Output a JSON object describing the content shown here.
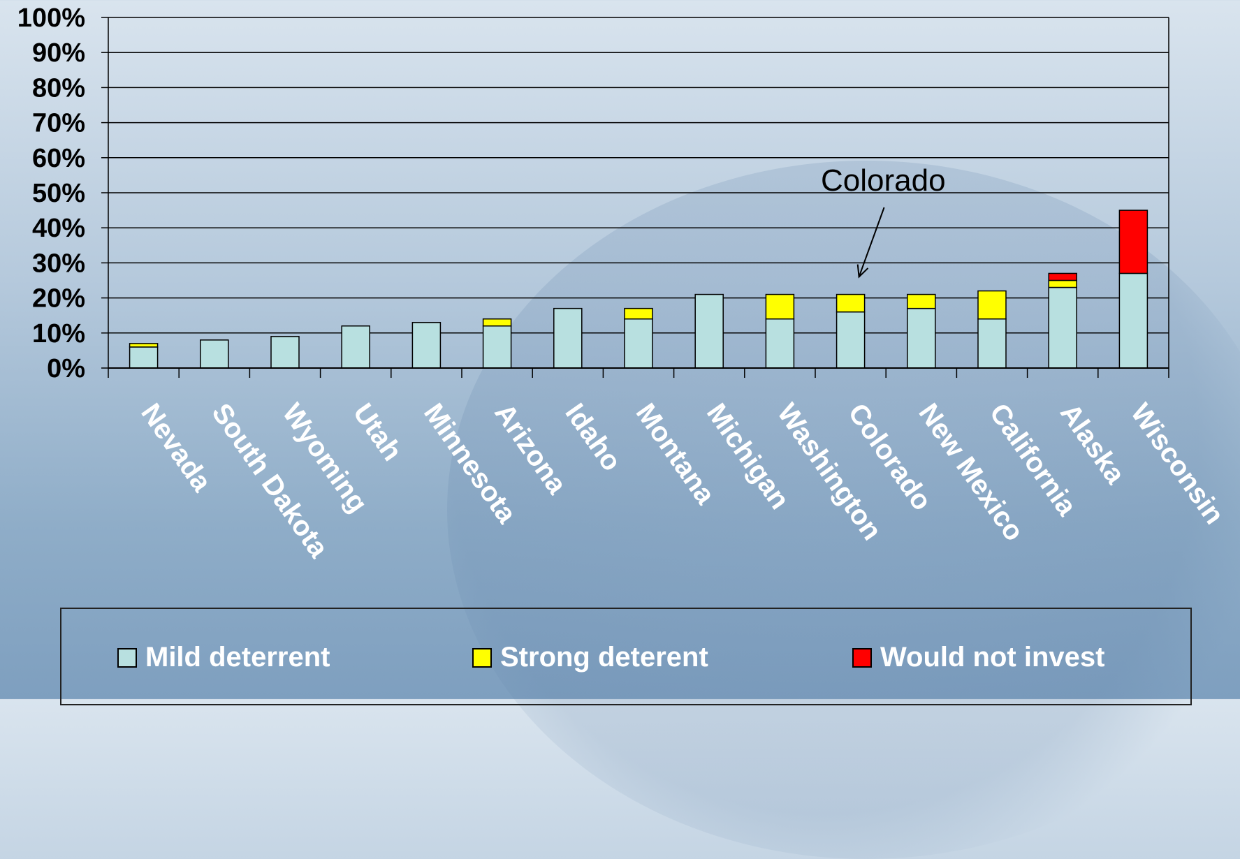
{
  "chart_data": {
    "type": "bar",
    "stacked": true,
    "categories": [
      "Nevada",
      "South Dakota",
      "Wyoming",
      "Utah",
      "Minnesota",
      "Arizona",
      "Idaho",
      "Montana",
      "Michigan",
      "Washington",
      "Colorado",
      "New Mexico",
      "California",
      "Alaska",
      "Wisconsin"
    ],
    "series": [
      {
        "name": "Mild deterrent",
        "color": "#b8e0e0",
        "values": [
          6,
          8,
          9,
          12,
          13,
          12,
          17,
          14,
          21,
          14,
          16,
          17,
          14,
          23,
          27
        ]
      },
      {
        "name": "Strong deterent",
        "color": "#ffff00",
        "values": [
          1,
          0,
          0,
          0,
          0,
          2,
          0,
          3,
          0,
          7,
          5,
          4,
          8,
          2,
          0
        ]
      },
      {
        "name": "Would not invest",
        "color": "#ff0000",
        "values": [
          0,
          0,
          0,
          0,
          0,
          0,
          0,
          0,
          0,
          0,
          0,
          0,
          0,
          2,
          18
        ]
      }
    ],
    "ylim": [
      0,
      100
    ],
    "yticks": [
      "0%",
      "10%",
      "20%",
      "30%",
      "40%",
      "50%",
      "60%",
      "70%",
      "80%",
      "90%",
      "100%"
    ],
    "grid": true,
    "legend_position": "bottom",
    "annotation": {
      "text": "Colorado",
      "target": "Colorado"
    }
  }
}
